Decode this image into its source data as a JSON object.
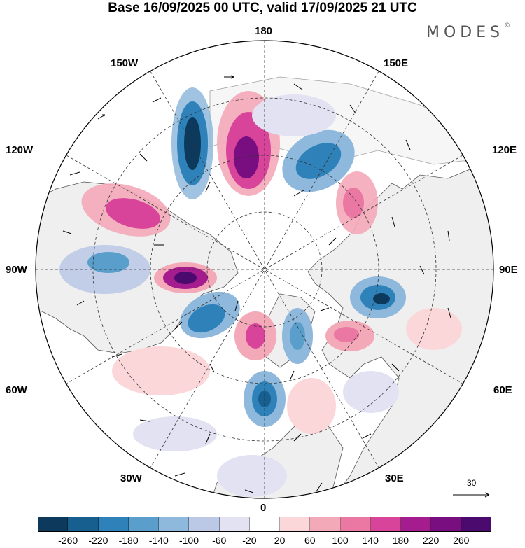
{
  "header": {
    "title": "Base 16/09/2025 00 UTC, valid 17/09/2025 21 UTC",
    "brand": "MODES",
    "brand_mark": "©"
  },
  "map": {
    "projection": "north-polar-stereographic",
    "longitude_labels": {
      "top": "180",
      "top_left": "150W",
      "top_right": "150E",
      "upper_left": "120W",
      "upper_right": "120E",
      "left": "90W",
      "right": "90E",
      "lower_left": "60W",
      "lower_right": "60E",
      "bottom_left": "30W",
      "bottom_right": "30E",
      "bottom": "0"
    },
    "reference_vector_label": "30",
    "colors": {
      "land": "#efefef",
      "ocean": "#ffffff"
    }
  },
  "colorbar": {
    "ticks": [
      "-260",
      "-220",
      "-180",
      "-140",
      "-100",
      "-60",
      "-20",
      "20",
      "60",
      "100",
      "140",
      "180",
      "220",
      "260"
    ],
    "colors": [
      "#0d3a5c",
      "#165f8e",
      "#2f82b9",
      "#5a9fcc",
      "#8eb8dc",
      "#bcc9e6",
      "#e2e2f2",
      "#ffffff",
      "#fbd7da",
      "#f4a9b8",
      "#eb77a3",
      "#d8449a",
      "#a51c8e",
      "#780e80",
      "#4b0a6e"
    ]
  }
}
